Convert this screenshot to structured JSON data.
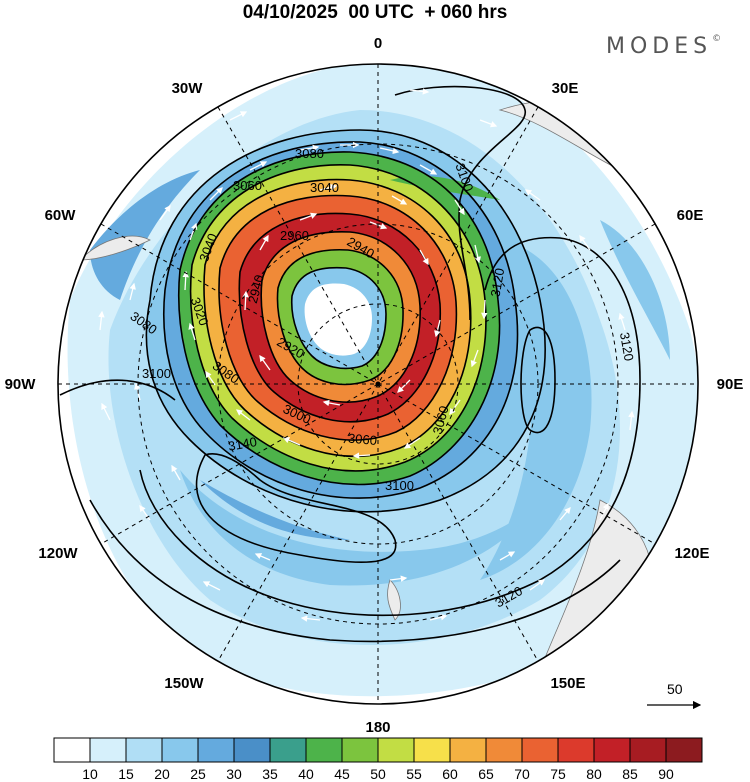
{
  "title": "04/10/2025  00 UTC  + 060 hrs",
  "brand": {
    "name": "MODES",
    "mark": "©"
  },
  "longitude_labels": [
    {
      "id": "0",
      "text": "0"
    },
    {
      "id": "30e",
      "text": "30E"
    },
    {
      "id": "60e",
      "text": "60E"
    },
    {
      "id": "90e",
      "text": "90E"
    },
    {
      "id": "120e",
      "text": "120E"
    },
    {
      "id": "150e",
      "text": "150E"
    },
    {
      "id": "180",
      "text": "180"
    },
    {
      "id": "150w",
      "text": "150W"
    },
    {
      "id": "120w",
      "text": "120W"
    },
    {
      "id": "90w",
      "text": "90W"
    },
    {
      "id": "60w",
      "text": "60W"
    },
    {
      "id": "30w",
      "text": "30W"
    }
  ],
  "contour_labels": [
    {
      "id": "3080-top",
      "text": "3080"
    },
    {
      "id": "3060-top",
      "text": "3060"
    },
    {
      "id": "3040-top",
      "text": "3040"
    },
    {
      "id": "3040-left",
      "text": "3040"
    },
    {
      "id": "2960",
      "text": "2960"
    },
    {
      "id": "2940-right",
      "text": "2940"
    },
    {
      "id": "2940-left",
      "text": "2940"
    },
    {
      "id": "3020",
      "text": "3020"
    },
    {
      "id": "2920",
      "text": "2920"
    },
    {
      "id": "3080-left",
      "text": "3080"
    },
    {
      "id": "3100-left",
      "text": "3100"
    },
    {
      "id": "3080-mid",
      "text": "3080"
    },
    {
      "id": "3140",
      "text": "3140"
    },
    {
      "id": "3100-top",
      "text": "3100"
    },
    {
      "id": "3120-right",
      "text": "3120"
    },
    {
      "id": "3120-far",
      "text": "3120"
    },
    {
      "id": "3060-right",
      "text": "3060"
    },
    {
      "id": "3100-bottom",
      "text": "3100"
    },
    {
      "id": "3120-bottom",
      "text": "3120"
    },
    {
      "id": "3000",
      "text": "3000"
    },
    {
      "id": "3060-bottom",
      "text": "3060"
    }
  ],
  "vector_scale": {
    "label": "50"
  },
  "colorbar": {
    "labels": [
      "10",
      "15",
      "20",
      "25",
      "30",
      "35",
      "40",
      "45",
      "50",
      "55",
      "60",
      "65",
      "70",
      "75",
      "80",
      "85",
      "90"
    ],
    "colors": [
      "#ffffff",
      "#d6f0fb",
      "#b0def5",
      "#88c8ec",
      "#64aade",
      "#4a8fc8",
      "#3a9f8c",
      "#4db34a",
      "#7cc43e",
      "#c2dd44",
      "#f7e04a",
      "#f4b142",
      "#f08a38",
      "#ea6232",
      "#dc3a2c",
      "#c22027",
      "#a71c22",
      "#8c1b1f"
    ]
  }
}
